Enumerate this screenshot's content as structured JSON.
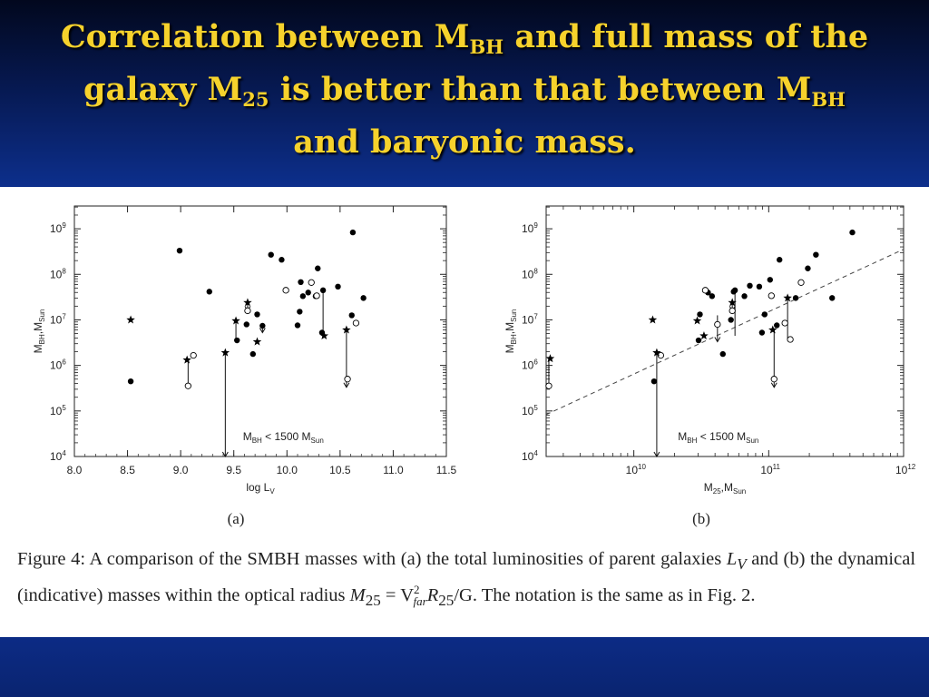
{
  "title": {
    "line1_a": "Correlation between M",
    "line1_sub": "BH",
    "line1_b": " and full mass of  the",
    "line2_a": "galaxy M",
    "line2_sub": "25",
    "line2_b": " is better than that between M",
    "line2_sub2": "BH",
    "line3": "and baryonic mass."
  },
  "colors": {
    "title_text": "#f6d22c",
    "header_dark": "#02081e",
    "header_light": "#0d2f8c",
    "footer": "#0a2470",
    "figure_bg": "#ffffff",
    "marker": "#000000"
  },
  "caption": {
    "prefix": "Figure 4:  A comparison of the SMBH masses with (a) the total luminosities of parent galaxies",
    "lv": "L",
    "lv_sub": "V",
    "mid": " and (b) the dynamical (indicative) masses within the optical radius ",
    "m25": "M",
    "m25_sub": "25",
    "eq": " = V",
    "v_sup": "2",
    "v_sub": "far",
    "r25": "R",
    "r25_sub": "25",
    "end": "/G.  The notation is the same as in Fig. 2."
  },
  "chart_data": [
    {
      "type": "scatter",
      "panel_label": "(a)",
      "xlabel_base": "log L",
      "xlabel_sub": "V",
      "ylabel_base": "M",
      "ylabel_sub1": "BH",
      "ylabel_sep": ",M",
      "ylabel_sub2": "Sun",
      "xscale": "linear",
      "yscale": "log",
      "xlim": [
        8.0,
        11.5
      ],
      "ylim_log10": [
        4,
        9.5
      ],
      "xticks": [
        {
          "v": 8.0,
          "label": "8.0"
        },
        {
          "v": 8.5,
          "label": "8.5"
        },
        {
          "v": 9.0,
          "label": "9.0"
        },
        {
          "v": 9.5,
          "label": "9.5"
        },
        {
          "v": 10.0,
          "label": "10.0"
        },
        {
          "v": 10.5,
          "label": "10.5"
        },
        {
          "v": 11.0,
          "label": "11.0"
        },
        {
          "v": 11.5,
          "label": "11.5"
        }
      ],
      "yticks": [
        {
          "e": 4,
          "base": "10",
          "exp": "4"
        },
        {
          "e": 5,
          "base": "10",
          "exp": "5"
        },
        {
          "e": 6,
          "base": "10",
          "exp": "6"
        },
        {
          "e": 7,
          "base": "10",
          "exp": "7"
        },
        {
          "e": 8,
          "base": "10",
          "exp": "8"
        },
        {
          "e": 9,
          "base": "10",
          "exp": "9"
        }
      ],
      "annotation": {
        "text_a": "M",
        "sub_a": "BH",
        "text_b": " < 1500 M",
        "sub_b": "Sun",
        "x": 9.5,
        "ylog": 4.2
      },
      "filled_points": [
        [
          8.53,
          5.65
        ],
        [
          8.99,
          8.52
        ],
        [
          9.27,
          7.62
        ],
        [
          9.53,
          6.55
        ],
        [
          9.62,
          6.9
        ],
        [
          9.68,
          6.25
        ],
        [
          9.72,
          7.12
        ],
        [
          9.77,
          6.87
        ],
        [
          9.85,
          8.43
        ],
        [
          9.95,
          8.32
        ],
        [
          10.1,
          6.88
        ],
        [
          10.12,
          7.18
        ],
        [
          10.13,
          7.83
        ],
        [
          10.15,
          7.52
        ],
        [
          10.2,
          7.6
        ],
        [
          10.27,
          7.52
        ],
        [
          10.29,
          8.13
        ],
        [
          10.33,
          6.72
        ],
        [
          10.34,
          7.65
        ],
        [
          10.48,
          7.73
        ],
        [
          10.61,
          7.1
        ],
        [
          10.62,
          8.92
        ],
        [
          10.72,
          7.48
        ]
      ],
      "open_points": [
        [
          9.07,
          5.55
        ],
        [
          9.12,
          6.22
        ],
        [
          9.63,
          7.2
        ],
        [
          9.99,
          7.65
        ],
        [
          10.23,
          7.82
        ],
        [
          10.28,
          7.53
        ],
        [
          10.57,
          5.7
        ],
        [
          10.65,
          6.93
        ]
      ],
      "star_points": [
        [
          8.53,
          7.0
        ],
        [
          9.06,
          6.12
        ],
        [
          9.42,
          6.28
        ],
        [
          9.52,
          6.98
        ],
        [
          9.63,
          7.38
        ],
        [
          9.72,
          6.52
        ],
        [
          10.35,
          6.65
        ],
        [
          10.56,
          6.78
        ]
      ],
      "upper_limit_lines": [
        {
          "x": 9.07,
          "from": 6.12,
          "to": 5.55
        },
        {
          "x": 9.42,
          "from": 6.28,
          "to": 4.0,
          "arrow": true
        },
        {
          "x": 9.52,
          "from": 6.98,
          "to": 6.55
        },
        {
          "x": 9.63,
          "from": 7.38,
          "to": 7.2,
          "arrow": true
        },
        {
          "x": 9.77,
          "from": 6.87,
          "to": 6.72,
          "arrow": true
        },
        {
          "x": 10.34,
          "from": 7.65,
          "to": 6.65
        },
        {
          "x": 10.56,
          "from": 6.78,
          "to": 5.52,
          "arrow": true
        }
      ]
    },
    {
      "type": "scatter",
      "panel_label": "(b)",
      "xlabel_base": "M",
      "xlabel_sub1": "25",
      "xlabel_sep": ",M",
      "xlabel_sub2": "Sun",
      "ylabel_base": "M",
      "ylabel_sub1": "BH",
      "ylabel_sep": ",M",
      "ylabel_sub2": "Sun",
      "xscale": "log",
      "yscale": "log",
      "xlim_log10": [
        9.35,
        12.0
      ],
      "ylim_log10": [
        4,
        9.5
      ],
      "xticks": [
        {
          "e": 10,
          "base": "10",
          "exp": "10"
        },
        {
          "e": 11,
          "base": "10",
          "exp": "11"
        },
        {
          "e": 12,
          "base": "10",
          "exp": "12"
        }
      ],
      "yticks": [
        {
          "e": 4,
          "base": "10",
          "exp": "4"
        },
        {
          "e": 5,
          "base": "10",
          "exp": "5"
        },
        {
          "e": 6,
          "base": "10",
          "exp": "6"
        },
        {
          "e": 7,
          "base": "10",
          "exp": "7"
        },
        {
          "e": 8,
          "base": "10",
          "exp": "8"
        },
        {
          "e": 9,
          "base": "10",
          "exp": "9"
        }
      ],
      "annotation": {
        "text_a": "M",
        "sub_a": "BH",
        "text_b": " < 1500 M",
        "sub_b": "Sun",
        "x": 10.26,
        "ylog": 4.2
      },
      "fit_line": {
        "x_from": 9.35,
        "y_from": 4.92,
        "x_to": 12.0,
        "y_to": 8.55
      },
      "filled_points": [
        [
          10.15,
          5.65
        ],
        [
          10.48,
          6.55
        ],
        [
          10.49,
          7.12
        ],
        [
          10.55,
          7.6
        ],
        [
          10.58,
          7.52
        ],
        [
          10.62,
          6.9
        ],
        [
          10.66,
          6.25
        ],
        [
          10.72,
          7.0
        ],
        [
          10.74,
          7.62
        ],
        [
          10.75,
          7.65
        ],
        [
          10.82,
          7.52
        ],
        [
          10.86,
          7.75
        ],
        [
          10.93,
          7.73
        ],
        [
          10.95,
          6.72
        ],
        [
          10.97,
          7.12
        ],
        [
          11.01,
          7.88
        ],
        [
          11.06,
          6.88
        ],
        [
          11.08,
          8.32
        ],
        [
          11.2,
          7.48
        ],
        [
          11.29,
          8.13
        ],
        [
          11.35,
          8.43
        ],
        [
          11.47,
          7.48
        ],
        [
          11.62,
          8.92
        ]
      ],
      "open_points": [
        [
          9.37,
          5.55
        ],
        [
          10.2,
          6.22
        ],
        [
          10.53,
          7.65
        ],
        [
          10.62,
          6.9
        ],
        [
          10.73,
          7.2
        ],
        [
          11.02,
          7.53
        ],
        [
          11.04,
          5.7
        ],
        [
          11.12,
          6.93
        ],
        [
          11.16,
          6.57
        ],
        [
          11.24,
          7.82
        ]
      ],
      "star_points": [
        [
          9.38,
          6.15
        ],
        [
          10.14,
          7.0
        ],
        [
          10.17,
          6.28
        ],
        [
          10.47,
          6.98
        ],
        [
          10.52,
          6.65
        ],
        [
          10.73,
          7.38
        ],
        [
          11.03,
          6.78
        ],
        [
          11.14,
          7.48
        ]
      ],
      "upper_limit_lines": [
        {
          "x": 9.37,
          "from": 6.15,
          "to": 5.55
        },
        {
          "x": 10.17,
          "from": 6.28,
          "to": 4.0,
          "arrow": true
        },
        {
          "x": 10.62,
          "from": 7.1,
          "to": 6.52,
          "arrow": true
        },
        {
          "x": 10.73,
          "from": 7.38,
          "to": 7.2,
          "arrow": true
        },
        {
          "x": 10.75,
          "from": 7.65,
          "to": 6.65
        },
        {
          "x": 11.04,
          "from": 6.78,
          "to": 5.52,
          "arrow": true
        },
        {
          "x": 11.14,
          "from": 7.48,
          "to": 6.57
        }
      ]
    }
  ]
}
